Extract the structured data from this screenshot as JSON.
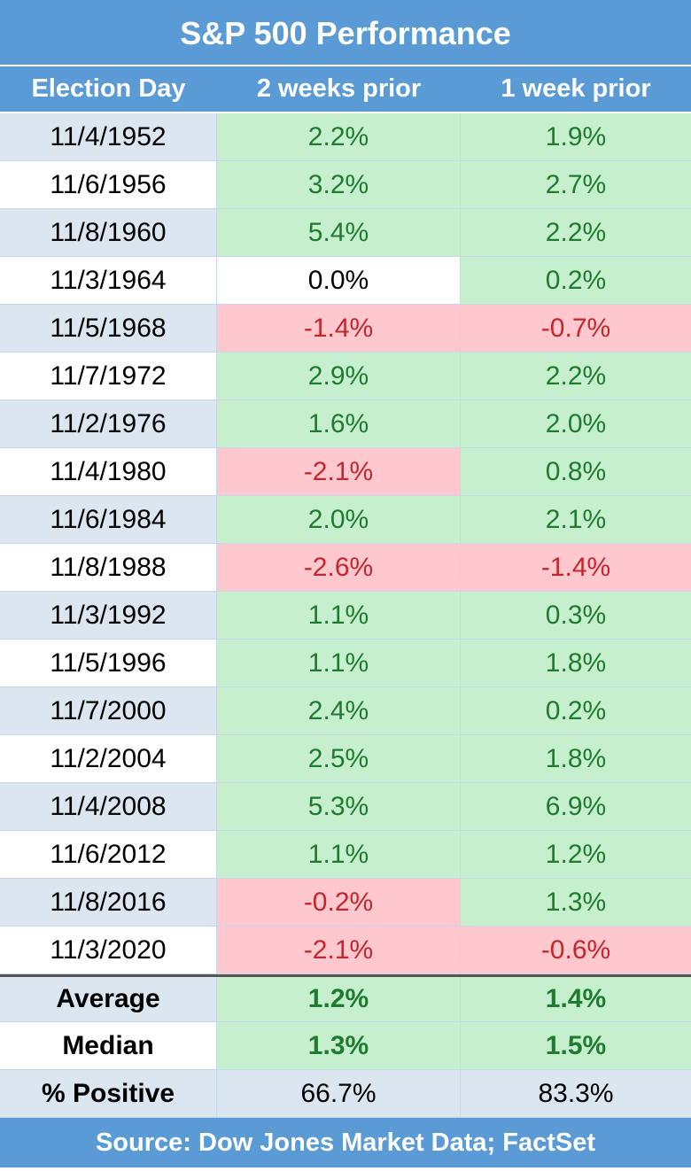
{
  "title": "S&P 500 Performance",
  "table": {
    "header": [
      "Election Day",
      "2 weeks prior",
      "1 week prior"
    ],
    "rows": [
      [
        "11/4/1952",
        "2.2%",
        "1.9%"
      ],
      [
        "11/6/1956",
        "3.2%",
        "2.7%"
      ],
      [
        "11/8/1960",
        "5.4%",
        "2.2%"
      ],
      [
        "11/3/1964",
        "0.0%",
        "0.2%"
      ],
      [
        "11/5/1968",
        "-1.4%",
        "-0.7%"
      ],
      [
        "11/7/1972",
        "2.9%",
        "2.2%"
      ],
      [
        "11/2/1976",
        "1.6%",
        "2.0%"
      ],
      [
        "11/4/1980",
        "-2.1%",
        "0.8%"
      ],
      [
        "11/6/1984",
        "2.0%",
        "2.1%"
      ],
      [
        "11/8/1988",
        "-2.6%",
        "-1.4%"
      ],
      [
        "11/3/1992",
        "1.1%",
        "0.3%"
      ],
      [
        "11/5/1996",
        "1.1%",
        "1.8%"
      ],
      [
        "11/7/2000",
        "2.4%",
        "0.2%"
      ],
      [
        "11/2/2004",
        "2.5%",
        "1.8%"
      ],
      [
        "11/4/2008",
        "5.3%",
        "6.9%"
      ],
      [
        "11/6/2012",
        "1.1%",
        "1.2%"
      ],
      [
        "11/8/2016",
        "-0.2%",
        "1.3%"
      ],
      [
        "11/3/2020",
        "-2.1%",
        "-0.6%"
      ]
    ],
    "summary": [
      [
        "Average",
        "1.2%",
        "1.4%"
      ],
      [
        "Median",
        "1.3%",
        "1.5%"
      ],
      [
        "% Positive",
        "66.7%",
        "83.3%"
      ]
    ]
  },
  "source": "Source: Dow Jones Market Data; FactSet"
}
